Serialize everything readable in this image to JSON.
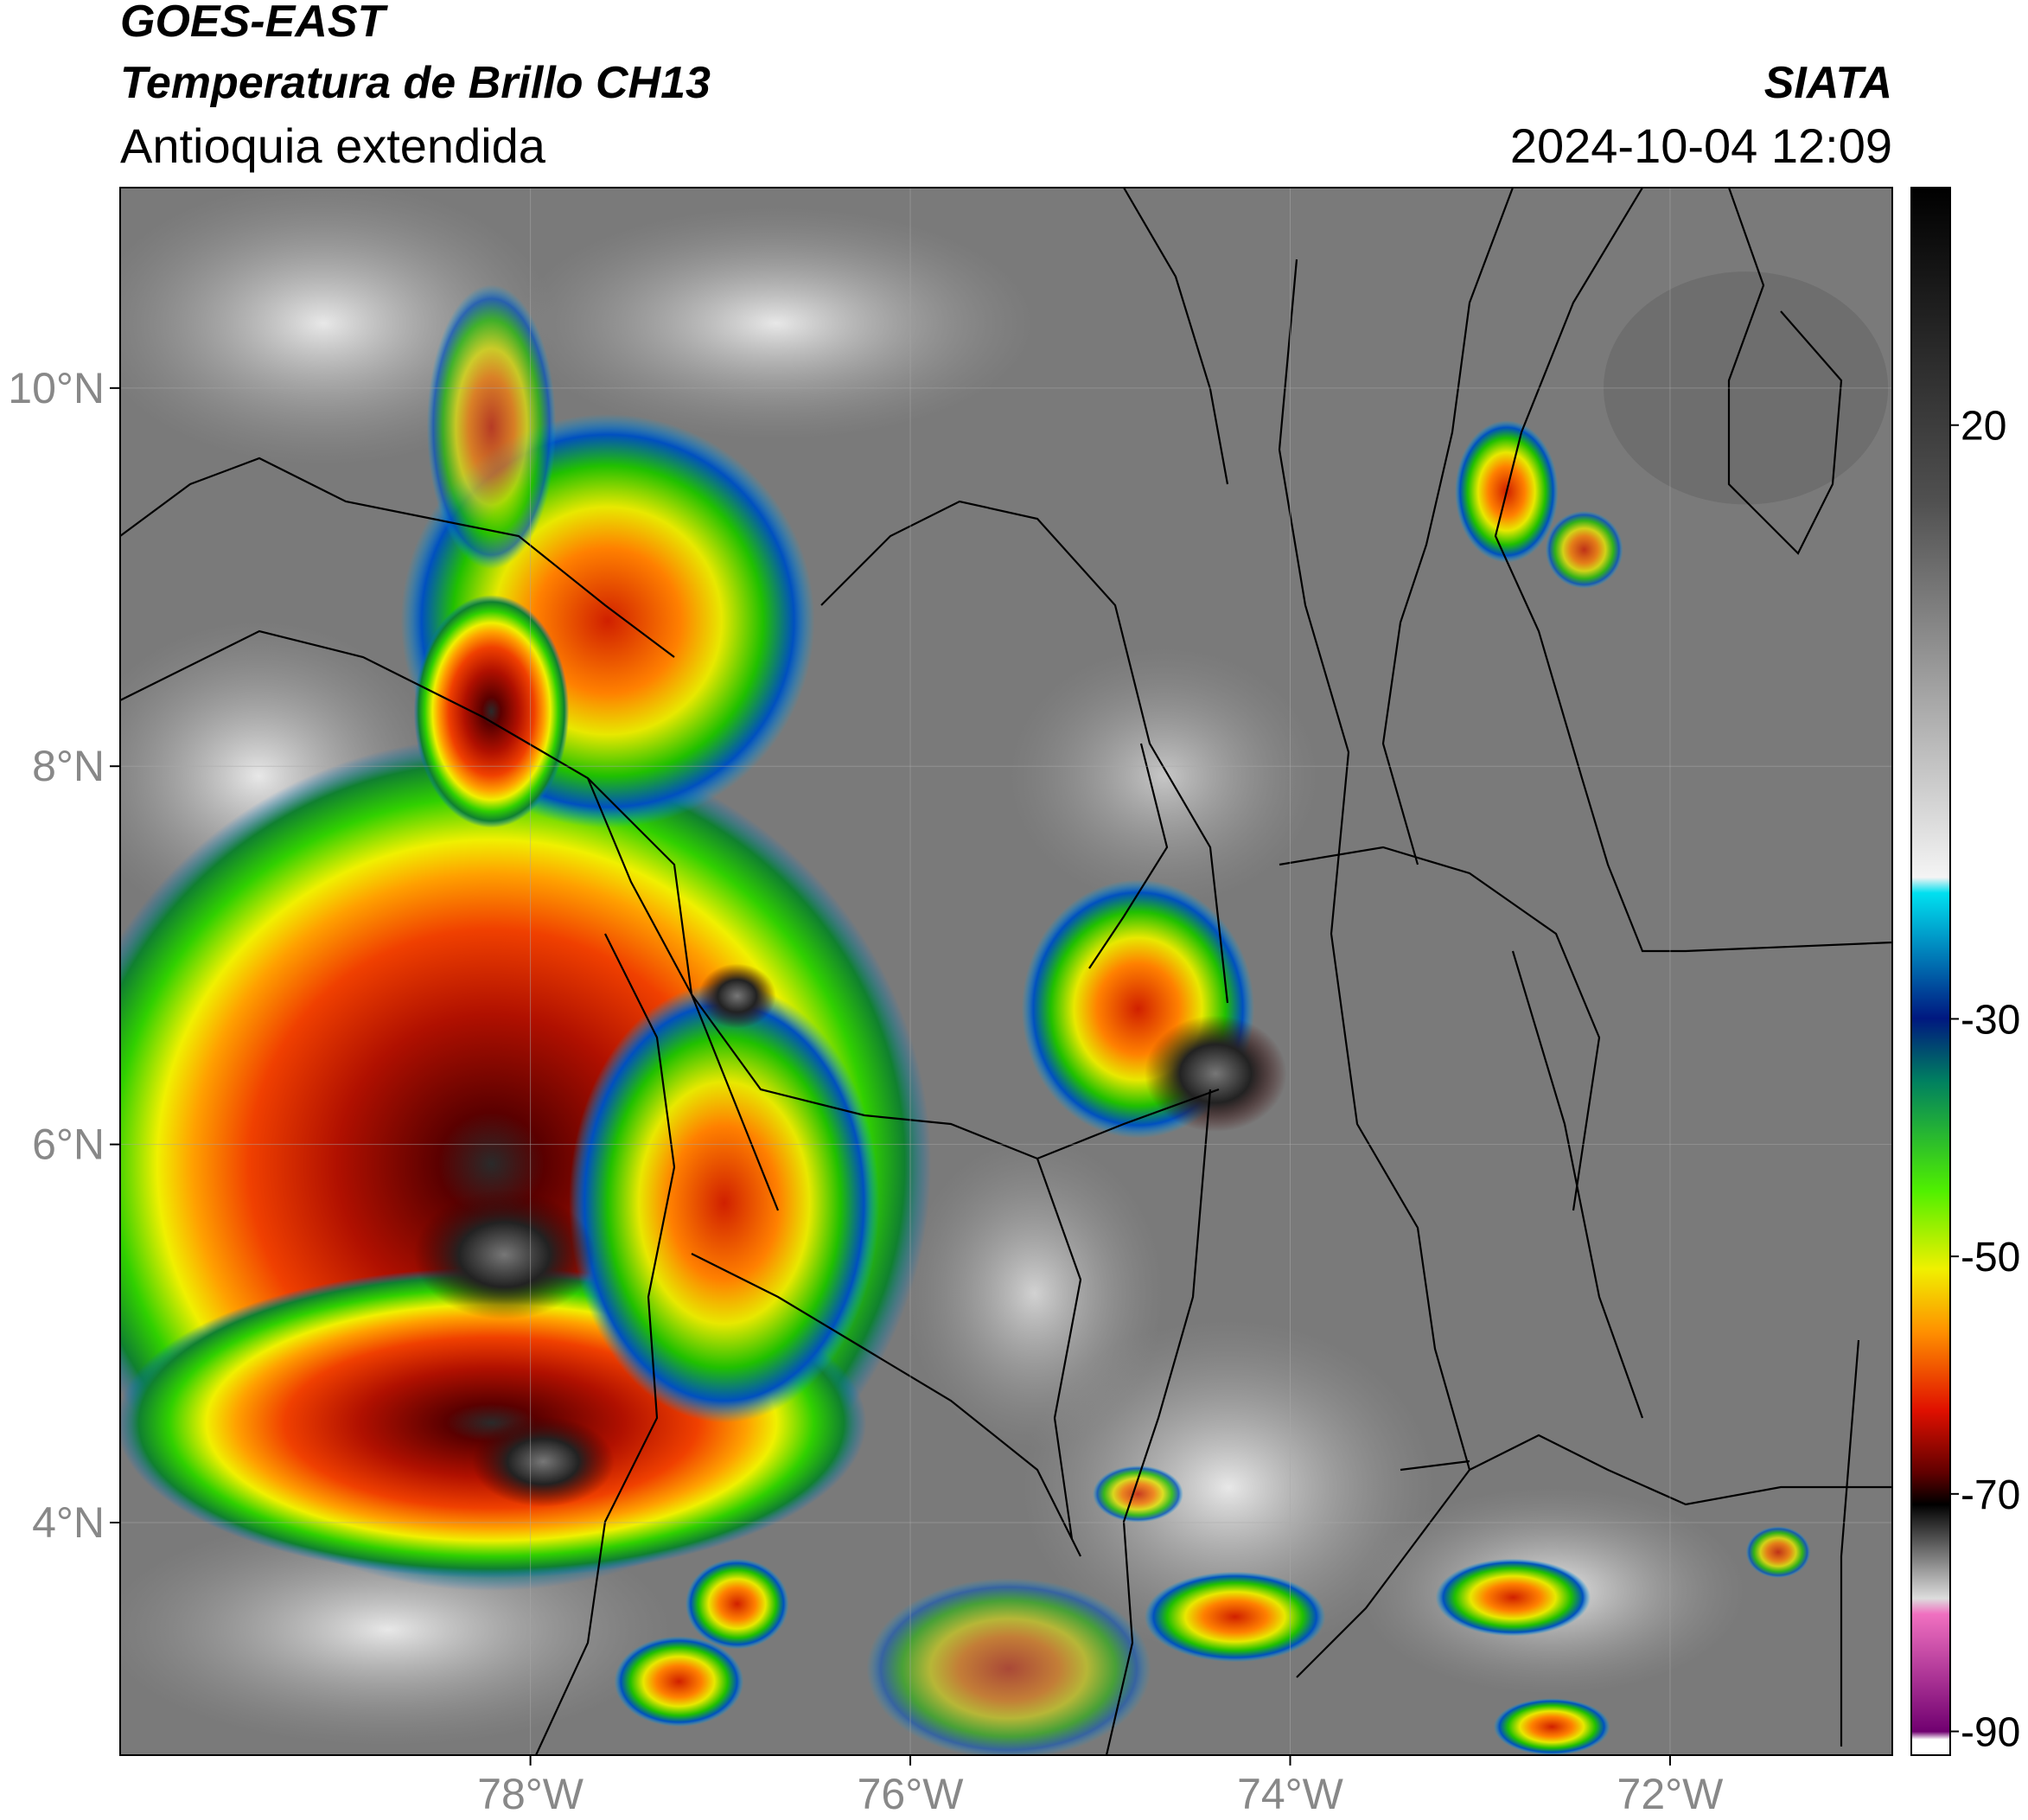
{
  "map": {
    "title": "GOES-EAST",
    "subtitle": "Temperatura de Brillo CH13",
    "region": "Antioquia extendida",
    "source": "SIATA",
    "datetime": "2024-10-04 12:09",
    "xlim": [
      -80.16,
      -70.83
    ],
    "ylim": [
      2.77,
      11.06
    ],
    "xticks": [
      {
        "value": -78,
        "label": "78°W"
      },
      {
        "value": -76,
        "label": "76°W"
      },
      {
        "value": -74,
        "label": "74°W"
      },
      {
        "value": -72,
        "label": "72°W"
      }
    ],
    "yticks": [
      {
        "value": 10,
        "label": "10°N"
      },
      {
        "value": 8,
        "label": "8°N"
      },
      {
        "value": 6,
        "label": "6°N"
      },
      {
        "value": 4,
        "label": "4°N"
      }
    ],
    "grid": true,
    "colorbar": {
      "lim": [
        -92,
        40
      ],
      "ticks": [
        20,
        -30,
        -50,
        -70,
        -90
      ]
    }
  }
}
